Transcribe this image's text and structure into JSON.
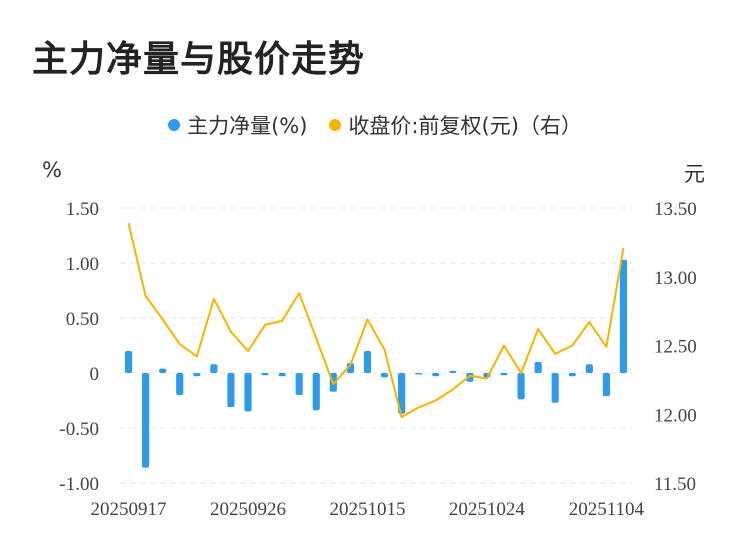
{
  "title": "主力净量与股价走势",
  "colors": {
    "bar": "#2f9ae8",
    "line": "#f4b400",
    "grid": "#e6e6e6"
  },
  "chart_data": {
    "type": "bar+line",
    "legend": [
      {
        "name": "主力净量(%)",
        "color": "#2f9ae8",
        "axis": "left"
      },
      {
        "name": "收盘价:前复权(元)（右）",
        "color": "#f4b400",
        "axis": "right"
      }
    ],
    "left_axis": {
      "unit": "%",
      "ylim": [
        -1.0,
        1.5
      ],
      "ticks": [
        "1.50",
        "1.00",
        "0.50",
        "0",
        "-0.50",
        "-1.00"
      ]
    },
    "right_axis": {
      "unit": "元",
      "ylim": [
        11.5,
        13.5
      ],
      "ticks": [
        "13.50",
        "13.00",
        "12.50",
        "12.00",
        "11.50"
      ]
    },
    "x_tick_labels": [
      "20250917",
      "20250926",
      "20251015",
      "20251024",
      "20251104"
    ],
    "x_tick_positions": [
      0,
      7,
      14,
      21,
      28
    ],
    "bars": [
      0.2,
      -0.86,
      0.04,
      -0.2,
      -0.03,
      0.08,
      -0.31,
      -0.35,
      -0.02,
      -0.03,
      -0.2,
      -0.34,
      -0.17,
      0.09,
      0.2,
      -0.04,
      -0.37,
      -0.01,
      -0.03,
      0.02,
      -0.08,
      -0.04,
      -0.02,
      -0.24,
      0.1,
      -0.27,
      -0.03,
      0.08,
      -0.21,
      1.03
    ],
    "close": [
      13.39,
      12.86,
      12.69,
      12.51,
      12.42,
      12.84,
      12.6,
      12.46,
      12.65,
      12.68,
      12.88,
      12.55,
      12.22,
      12.36,
      12.69,
      12.47,
      11.98,
      12.05,
      12.1,
      12.18,
      12.28,
      12.26,
      12.5,
      12.3,
      12.62,
      12.44,
      12.5,
      12.67,
      12.49,
      13.21
    ]
  }
}
